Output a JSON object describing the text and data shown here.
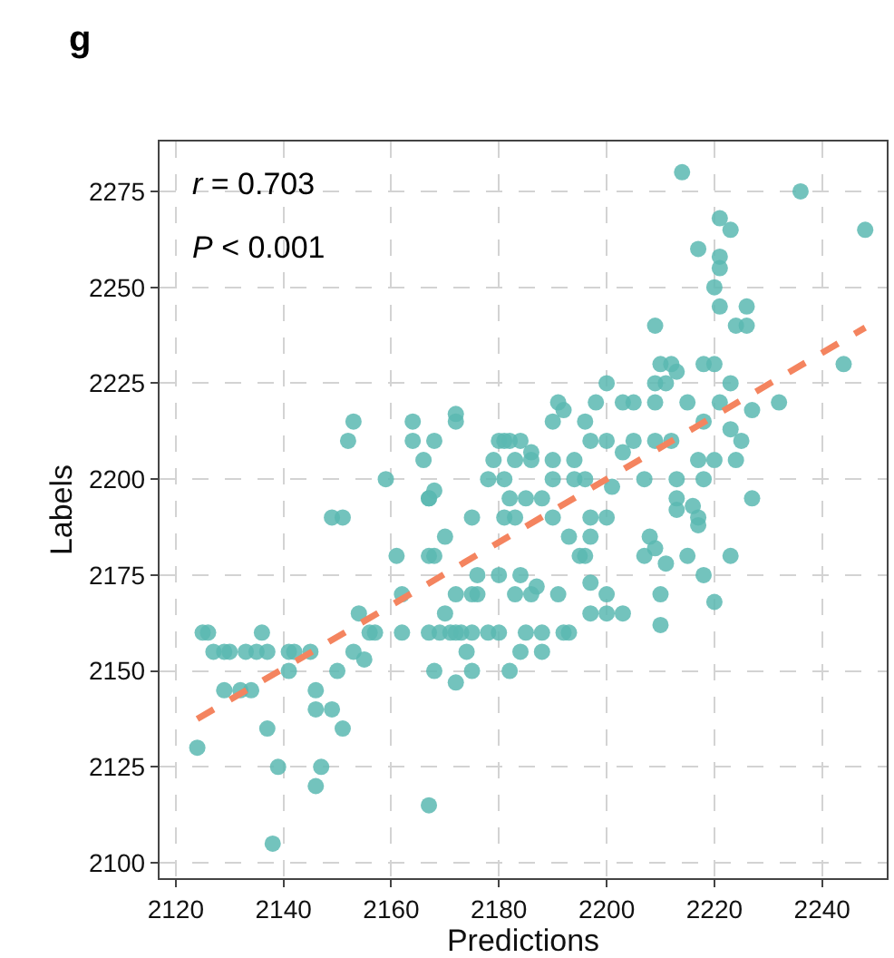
{
  "chart_data": {
    "type": "scatter",
    "xlabel": "Predictions",
    "ylabel": "Labels",
    "annotations": [
      "g",
      "r = 0.703",
      "P < 0.001"
    ],
    "xlim": [
      2117,
      2252
    ],
    "ylim": [
      2096,
      2288
    ],
    "xticks": [
      2120,
      2140,
      2160,
      2180,
      2200,
      2220,
      2240
    ],
    "yticks": [
      2100,
      2125,
      2150,
      2175,
      2200,
      2225,
      2250,
      2275
    ],
    "grid": true,
    "marker": "circle",
    "series": [
      {
        "color": "#5ab8b2",
        "x": [
          2124,
          2125,
          2126,
          2127,
          2129,
          2130,
          2133,
          2135,
          2137,
          2141,
          2142,
          2145,
          2136,
          2129,
          2132,
          2134,
          2137,
          2139,
          2138,
          2141,
          2146,
          2146,
          2147,
          2146,
          2149,
          2151,
          2149,
          2151,
          2153,
          2152,
          2154,
          2153,
          2155,
          2150,
          2156,
          2157,
          2162,
          2159,
          2161,
          2162,
          2164,
          2164,
          2167,
          2167,
          2167,
          2167,
          2169,
          2171,
          2173,
          2175,
          2168,
          2172,
          2175,
          2166,
          2168,
          2172,
          2172,
          2168,
          2168,
          2167,
          2170,
          2175,
          2181,
          2172,
          2176,
          2175,
          2170,
          2172,
          2178,
          2180,
          2179,
          2181,
          2180,
          2178,
          2181,
          2176,
          2180,
          2174,
          2214,
          2236,
          2248,
          2221,
          2223,
          2217,
          2221,
          2221,
          2220,
          2221,
          2226,
          2226,
          2224,
          2209,
          2244,
          2210,
          2212,
          2213,
          2218,
          2220,
          2209,
          2211,
          2200,
          2198,
          2203,
          2205,
          2209,
          2215,
          2221,
          2223,
          2227,
          2232,
          2191,
          2192,
          2190,
          2196,
          2218,
          2223,
          2225,
          2197,
          2200,
          2205,
          2209,
          2212,
          2203,
          2217,
          2220,
          2224,
          2182,
          2184,
          2186,
          2183,
          2186,
          2190,
          2194,
          2190,
          2194,
          2196,
          2201,
          2207,
          2213,
          2218,
          2227,
          2213,
          2213,
          2216,
          2217,
          2217,
          2197,
          2200,
          2182,
          2185,
          2188,
          2183,
          2190,
          2193,
          2197,
          2208,
          2207,
          2209,
          2211,
          2215,
          2223,
          2195,
          2196,
          2218,
          2197,
          2210,
          2220,
          2200,
          2197,
          2200,
          2203,
          2210,
          2185,
          2188,
          2192,
          2193,
          2184,
          2188,
          2182,
          2191,
          2186,
          2183,
          2184,
          2187
        ],
        "values": [
          2130,
          2160,
          2160,
          2155,
          2155,
          2155,
          2155,
          2155,
          2155,
          2155,
          2155,
          2155,
          2160,
          2145,
          2145,
          2145,
          2135,
          2125,
          2105,
          2150,
          2145,
          2140,
          2125,
          2120,
          2140,
          2135,
          2190,
          2190,
          2215,
          2210,
          2165,
          2155,
          2153,
          2150,
          2160,
          2160,
          2160,
          2200,
          2180,
          2170,
          2215,
          2210,
          2195,
          2195,
          2115,
          2160,
          2160,
          2160,
          2160,
          2160,
          2150,
          2147,
          2150,
          2205,
          2210,
          2217,
          2215,
          2197,
          2180,
          2180,
          2185,
          2190,
          2190,
          2170,
          2170,
          2170,
          2165,
          2160,
          2160,
          2160,
          2205,
          2210,
          2210,
          2200,
          2200,
          2175,
          2175,
          2155,
          2280,
          2275,
          2265,
          2268,
          2265,
          2260,
          2258,
          2255,
          2250,
          2245,
          2245,
          2240,
          2240,
          2240,
          2230,
          2230,
          2230,
          2228,
          2230,
          2230,
          2225,
          2225,
          2225,
          2220,
          2220,
          2220,
          2220,
          2220,
          2220,
          2225,
          2218,
          2220,
          2220,
          2218,
          2215,
          2215,
          2215,
          2213,
          2210,
          2210,
          2210,
          2210,
          2210,
          2210,
          2207,
          2205,
          2205,
          2205,
          2210,
          2210,
          2207,
          2205,
          2205,
          2205,
          2205,
          2200,
          2200,
          2200,
          2198,
          2200,
          2200,
          2200,
          2195,
          2195,
          2192,
          2193,
          2190,
          2188,
          2190,
          2190,
          2195,
          2195,
          2195,
          2190,
          2190,
          2185,
          2185,
          2185,
          2180,
          2182,
          2178,
          2180,
          2180,
          2180,
          2180,
          2175,
          2173,
          2170,
          2168,
          2170,
          2165,
          2165,
          2165,
          2162,
          2160,
          2160,
          2160,
          2160,
          2155,
          2155,
          2150,
          2170,
          2170,
          2170,
          2175,
          2172
        ]
      },
      {
        "type": "line",
        "color": "#f4845f",
        "line_style": "dashed",
        "marker": "none",
        "x": [
          2124,
          2248
        ],
        "values": [
          2137.5,
          2239.5
        ]
      }
    ]
  }
}
